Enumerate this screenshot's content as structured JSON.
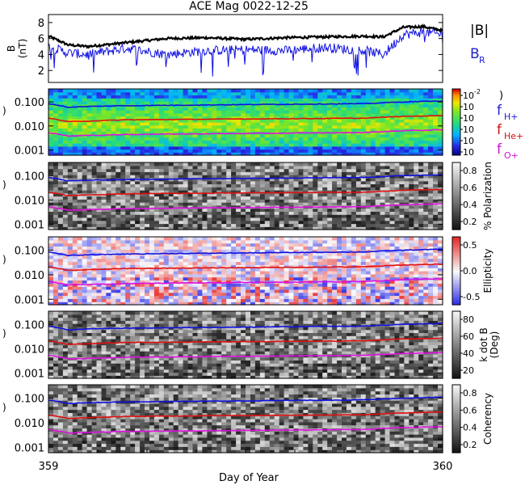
{
  "title": "ACE Mag 0022-12-25",
  "x_axis": {
    "label": "Day of Year",
    "ticks": [
      "359",
      "360"
    ]
  },
  "panels": [
    {
      "id": "B",
      "ylabel_line1": "B",
      "ylabel_line2": "(nT)",
      "yticks": [
        "2",
        "4",
        "6",
        "8"
      ],
      "ylim": [
        0.5,
        9
      ],
      "legend": [
        {
          "text": "|B|",
          "color": "#000000"
        },
        {
          "text": "B",
          "sub": "R",
          "color": "#2020d0"
        }
      ]
    },
    {
      "id": "power",
      "yticks": [
        "0.100",
        "0.010",
        "0.001"
      ],
      "colorbar_ticks": [
        "10",
        "10",
        "10",
        "10",
        "10",
        "10"
      ],
      "colorbar_exponents": [
        "-2",
        "",
        "",
        "",
        "",
        ""
      ],
      "colorbar_type": "rainbow",
      "legend": [
        {
          "text": "f",
          "sub": "H+",
          "color": "#2020d0"
        },
        {
          "text": "f",
          "sub": "He+",
          "color": "#d01010"
        },
        {
          "text": "f",
          "sub": "O+",
          "color": "#d010d0"
        }
      ],
      "paren": ")"
    },
    {
      "id": "polarization",
      "yticks": [
        "0.100",
        "0.010",
        "0.001"
      ],
      "colorbar_label": "% Polarization",
      "colorbar_ticks": [
        "0.8",
        "0.6",
        "0.4",
        "0.2"
      ],
      "colorbar_type": "gray"
    },
    {
      "id": "ellipticity",
      "yticks": [
        "0.100",
        "0.010",
        "0.001"
      ],
      "colorbar_label": "Ellipticity",
      "colorbar_ticks": [
        "0.5",
        "0.0",
        "-0.5"
      ],
      "colorbar_type": "bwr"
    },
    {
      "id": "kdotb",
      "yticks": [
        "0.100",
        "0.010",
        "0.001"
      ],
      "colorbar_label_line1": "k dot B",
      "colorbar_label_line2": "(Deg)",
      "colorbar_ticks": [
        "80",
        "60",
        "40",
        "20"
      ],
      "colorbar_type": "gray"
    },
    {
      "id": "coherency",
      "yticks": [
        "0.100",
        "0.010",
        "0.001"
      ],
      "colorbar_label": "Coherency",
      "colorbar_ticks": [
        "0.8",
        "0.6",
        "0.4",
        "0.2"
      ],
      "colorbar_type": "gray"
    }
  ],
  "chart_data": {
    "type": "line",
    "title": "ACE Mag 0022-12-25",
    "xlabel": "Day of Year",
    "xlim": [
      359,
      360
    ],
    "series": [
      {
        "name": "|B|",
        "x": [
          359.0,
          359.05,
          359.1,
          359.2,
          359.3,
          359.4,
          359.5,
          359.6,
          359.7,
          359.8,
          359.85,
          359.9,
          359.95,
          360.0
        ],
        "values": [
          6.3,
          5.2,
          5.0,
          5.5,
          6.0,
          6.1,
          5.9,
          6.1,
          6.2,
          6.3,
          6.2,
          7.4,
          7.5,
          7.0
        ]
      },
      {
        "name": "B_R",
        "x": [
          359.0,
          359.05,
          359.1,
          359.2,
          359.3,
          359.4,
          359.5,
          359.6,
          359.7,
          359.8,
          359.85,
          359.9,
          359.95,
          360.0
        ],
        "values": [
          5.0,
          4.2,
          4.0,
          4.8,
          4.0,
          4.5,
          4.6,
          4.5,
          4.9,
          4.5,
          4.0,
          6.5,
          6.8,
          6.5
        ]
      },
      {
        "name": "f_H+",
        "x": [
          359.0,
          359.05,
          359.1,
          359.2,
          359.4,
          359.6,
          359.8,
          359.9,
          360.0
        ],
        "values": [
          0.085,
          0.06,
          0.065,
          0.07,
          0.075,
          0.08,
          0.085,
          0.1,
          0.11
        ]
      },
      {
        "name": "f_He+",
        "x": [
          359.0,
          359.05,
          359.1,
          359.2,
          359.4,
          359.6,
          359.8,
          359.9,
          360.0
        ],
        "values": [
          0.021,
          0.015,
          0.016,
          0.018,
          0.019,
          0.02,
          0.021,
          0.025,
          0.027
        ]
      },
      {
        "name": "f_O+",
        "x": [
          359.0,
          359.05,
          359.1,
          359.2,
          359.4,
          359.6,
          359.8,
          359.9,
          360.0
        ],
        "values": [
          0.0053,
          0.0038,
          0.004,
          0.0044,
          0.0047,
          0.005,
          0.0053,
          0.0063,
          0.0069
        ]
      }
    ]
  }
}
